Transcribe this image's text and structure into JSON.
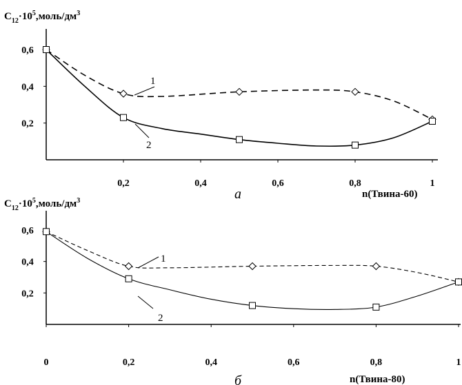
{
  "chart_data": [
    {
      "type": "line",
      "panel_label": "а",
      "ylabel": {
        "main": "C",
        "sub": "12",
        "mid": "·10",
        "sup": "5",
        "rest": ",моль/дм",
        "sup2": "3"
      },
      "xlabel": "n(Твина-60)",
      "xlim": [
        0,
        1
      ],
      "ylim": [
        0,
        0.65
      ],
      "x_ticks": [
        "0,2",
        "0,4",
        "0,6",
        "0,8",
        "1"
      ],
      "x_tick_values": [
        0.2,
        0.4,
        0.6,
        0.8,
        1
      ],
      "y_ticks": [
        "0,6",
        "0,4",
        "0,2"
      ],
      "y_tick_values": [
        0.6,
        0.4,
        0.2
      ],
      "series": [
        {
          "name": "1",
          "style": "dashed",
          "marker": "diamond",
          "points": [
            [
              0,
              0.6
            ],
            [
              0.2,
              0.36
            ],
            [
              0.5,
              0.37
            ],
            [
              0.8,
              0.37
            ],
            [
              1,
              0.22
            ]
          ],
          "curve": [
            [
              0,
              0.6
            ],
            [
              0.1,
              0.46
            ],
            [
              0.2,
              0.36
            ],
            [
              0.3,
              0.345
            ],
            [
              0.5,
              0.37
            ],
            [
              0.7,
              0.38
            ],
            [
              0.8,
              0.37
            ],
            [
              0.9,
              0.32
            ],
            [
              1,
              0.22
            ]
          ]
        },
        {
          "name": "2",
          "style": "solid",
          "marker": "square",
          "points": [
            [
              0,
              0.6
            ],
            [
              0.2,
              0.23
            ],
            [
              0.5,
              0.11
            ],
            [
              0.8,
              0.08
            ],
            [
              1,
              0.21
            ]
          ],
          "curve": [
            [
              0,
              0.6
            ],
            [
              0.1,
              0.4
            ],
            [
              0.2,
              0.23
            ],
            [
              0.3,
              0.17
            ],
            [
              0.4,
              0.14
            ],
            [
              0.5,
              0.11
            ],
            [
              0.6,
              0.09
            ],
            [
              0.7,
              0.075
            ],
            [
              0.8,
              0.08
            ],
            [
              0.9,
              0.12
            ],
            [
              1,
              0.21
            ]
          ]
        }
      ]
    },
    {
      "type": "line",
      "panel_label": "б",
      "ylabel": {
        "main": "C",
        "sub": "12",
        "mid": "·10",
        "sup": "5",
        "rest": ",моль/дм",
        "sup2": "3"
      },
      "xlabel": "n(Твина-80)",
      "xlim": [
        0,
        1
      ],
      "ylim": [
        0,
        0.65
      ],
      "x_ticks": [
        "0",
        "0,2",
        "0,4",
        "0,6",
        "0,8",
        "1"
      ],
      "x_tick_values": [
        0,
        0.2,
        0.4,
        0.6,
        0.8,
        1
      ],
      "y_ticks": [
        "0,6",
        "0,4",
        "0,2"
      ],
      "y_tick_values": [
        0.6,
        0.4,
        0.2
      ],
      "series": [
        {
          "name": "1",
          "style": "dashed",
          "marker": "diamond",
          "points": [
            [
              0,
              0.59
            ],
            [
              0.2,
              0.37
            ],
            [
              0.5,
              0.37
            ],
            [
              0.8,
              0.37
            ],
            [
              1,
              0.27
            ]
          ],
          "curve": [
            [
              0,
              0.59
            ],
            [
              0.1,
              0.47
            ],
            [
              0.2,
              0.37
            ],
            [
              0.3,
              0.36
            ],
            [
              0.5,
              0.37
            ],
            [
              0.7,
              0.375
            ],
            [
              0.8,
              0.37
            ],
            [
              0.9,
              0.33
            ],
            [
              1,
              0.27
            ]
          ]
        },
        {
          "name": "2",
          "style": "solid",
          "marker": "square",
          "points": [
            [
              0,
              0.59
            ],
            [
              0.2,
              0.29
            ],
            [
              0.5,
              0.12
            ],
            [
              0.8,
              0.11
            ],
            [
              1,
              0.27
            ]
          ],
          "curve": [
            [
              0,
              0.59
            ],
            [
              0.1,
              0.42
            ],
            [
              0.2,
              0.29
            ],
            [
              0.3,
              0.22
            ],
            [
              0.4,
              0.16
            ],
            [
              0.5,
              0.12
            ],
            [
              0.6,
              0.1
            ],
            [
              0.7,
              0.095
            ],
            [
              0.8,
              0.11
            ],
            [
              0.9,
              0.18
            ],
            [
              1,
              0.27
            ]
          ]
        }
      ]
    }
  ]
}
